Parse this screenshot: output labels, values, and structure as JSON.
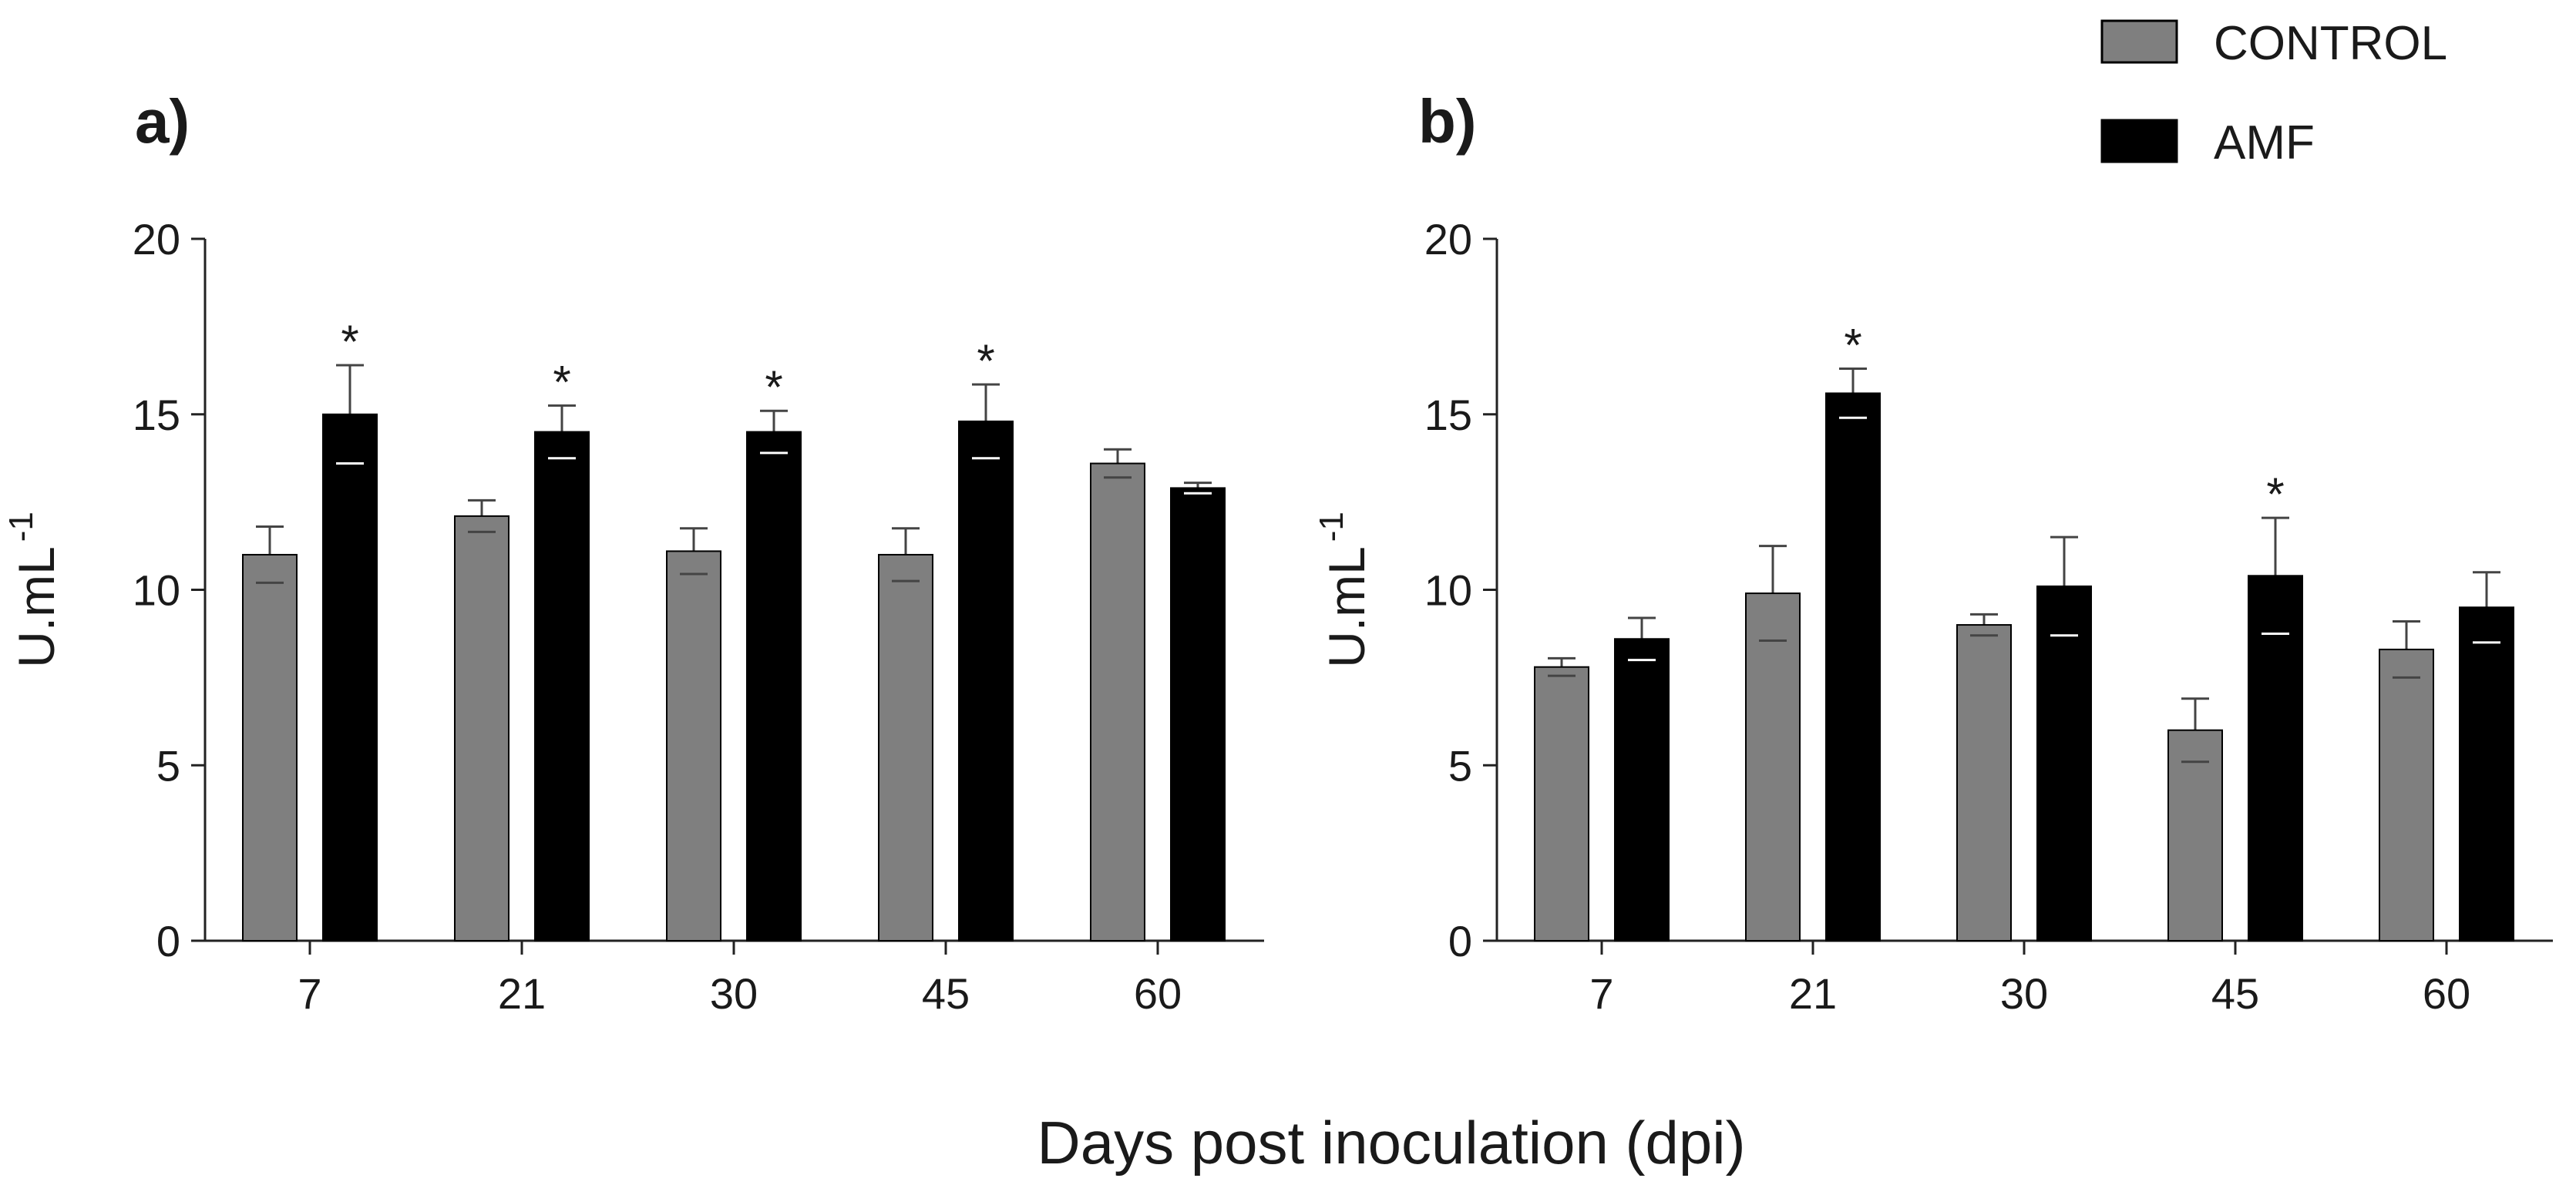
{
  "figure": {
    "xlabel": "Days post inoculation (dpi)",
    "legend": {
      "placement": "top-right",
      "items": [
        {
          "label": "CONTROL",
          "color": "#7f7f7f"
        },
        {
          "label": "AMF",
          "color": "#000000"
        }
      ]
    }
  },
  "chart_data": [
    {
      "panel": "a)",
      "type": "bar",
      "ylabel": "U.mL",
      "ylabel_superscript": "-1",
      "ylim": [
        0,
        20
      ],
      "yticks": [
        "0",
        "5",
        "10",
        "15",
        "20"
      ],
      "categories": [
        "7",
        "21",
        "30",
        "45",
        "60"
      ],
      "series": [
        {
          "name": "CONTROL",
          "color": "#7f7f7f",
          "values": [
            11.0,
            12.1,
            11.1,
            11.0,
            13.6
          ],
          "errors": [
            0.8,
            0.45,
            0.65,
            0.75,
            0.4
          ]
        },
        {
          "name": "AMF",
          "color": "#000000",
          "values": [
            15.0,
            14.5,
            14.5,
            14.8,
            12.9
          ],
          "errors": [
            1.4,
            0.75,
            0.6,
            1.05,
            0.15
          ]
        }
      ],
      "significance": [
        {
          "series": "AMF",
          "category": "7",
          "mark": "*"
        },
        {
          "series": "AMF",
          "category": "21",
          "mark": "*"
        },
        {
          "series": "AMF",
          "category": "30",
          "mark": "*"
        },
        {
          "series": "AMF",
          "category": "45",
          "mark": "*"
        }
      ],
      "grid": false
    },
    {
      "panel": "b)",
      "type": "bar",
      "ylabel": "U.mL",
      "ylabel_superscript": "-1",
      "ylim": [
        0,
        20
      ],
      "yticks": [
        "0",
        "5",
        "10",
        "15",
        "20"
      ],
      "categories": [
        "7",
        "21",
        "30",
        "45",
        "60"
      ],
      "series": [
        {
          "name": "CONTROL",
          "color": "#7f7f7f",
          "values": [
            7.8,
            9.9,
            9.0,
            6.0,
            8.3
          ],
          "errors": [
            0.25,
            1.35,
            0.3,
            0.9,
            0.8
          ]
        },
        {
          "name": "AMF",
          "color": "#000000",
          "values": [
            8.6,
            15.6,
            10.1,
            10.4,
            9.5
          ],
          "errors": [
            0.6,
            0.7,
            1.4,
            1.65,
            1.0
          ]
        }
      ],
      "significance": [
        {
          "series": "AMF",
          "category": "21",
          "mark": "*"
        },
        {
          "series": "AMF",
          "category": "45",
          "mark": "*"
        }
      ],
      "grid": false
    }
  ]
}
